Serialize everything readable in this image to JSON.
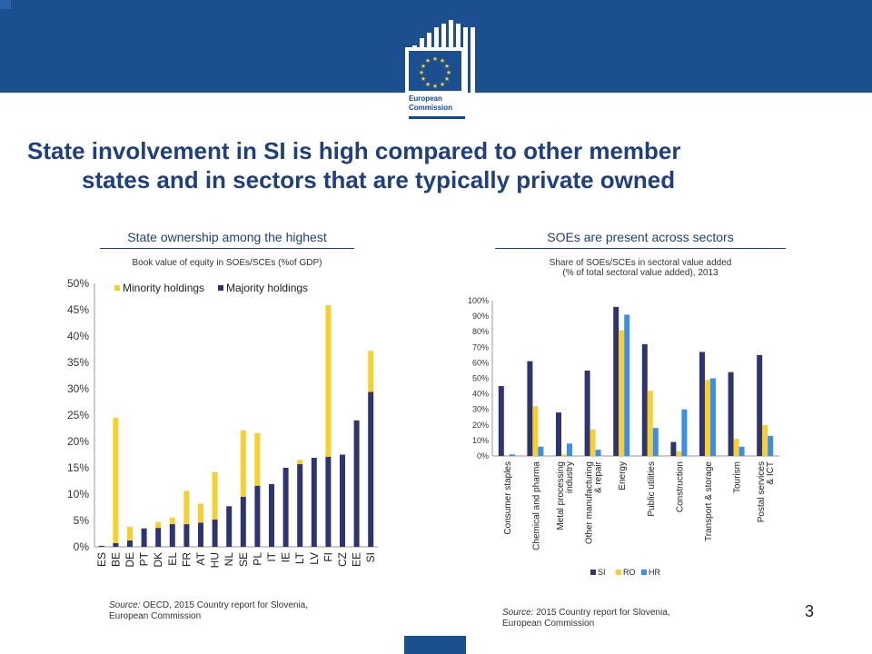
{
  "header": {
    "logo_line1": "European",
    "logo_line2": "Commission"
  },
  "title_line1": "State involvement in SI is high compared to other member",
  "title_line2": "states and in sectors that are typically private owned",
  "left": {
    "subtitle": "State ownership among the highest",
    "chart_title": "Book value of equity in SOEs/SCEs (%of GDP)",
    "source_label": "Source:",
    "source_text": " OECD, 2015 Country report for Slovenia,",
    "source_text2": "European Commission"
  },
  "right": {
    "subtitle": "SOEs are present across sectors",
    "chart_title_line1": "Share of SOEs/SCEs in sectoral value added",
    "chart_title_line2": "(% of total sectoral value added), 2013",
    "source_label": "Source:",
    "source_text": " 2015 Country report for Slovenia,",
    "source_text2": "European Commission"
  },
  "page_number": "3",
  "colors": {
    "brand_blue": "#1b4f8f",
    "title_blue": "#1f3f7e",
    "majority": "#2e3470",
    "minority": "#f7d02f",
    "SI": "#2e3470",
    "RO": "#f7d02f",
    "HR": "#3b8fe8"
  },
  "chart_data": [
    {
      "type": "bar",
      "stacked": true,
      "categories": [
        "ES",
        "BE",
        "DE",
        "PT",
        "DK",
        "EL",
        "FR",
        "AT",
        "HU",
        "NL",
        "SE",
        "PL",
        "IT",
        "IE",
        "LT",
        "LV",
        "FI",
        "CZ",
        "EE",
        "SI"
      ],
      "series": [
        {
          "name": "Majority holdings",
          "values": [
            0.2,
            0.7,
            1.2,
            3.5,
            3.6,
            4.3,
            4.3,
            4.6,
            5.2,
            7.7,
            9.5,
            11.6,
            11.9,
            15.0,
            15.7,
            16.9,
            17.1,
            17.5,
            24.0,
            29.4
          ]
        },
        {
          "name": "Minority holdings",
          "values": [
            0.0,
            23.8,
            2.6,
            0.0,
            1.1,
            1.2,
            6.3,
            3.6,
            9.0,
            0.0,
            12.6,
            10.0,
            0.0,
            0.0,
            0.8,
            0.0,
            28.8,
            0.0,
            0.0,
            7.8
          ]
        }
      ],
      "ylim": [
        0,
        50
      ],
      "yticks": [
        "0%",
        "5%",
        "10%",
        "15%",
        "20%",
        "25%",
        "30%",
        "35%",
        "40%",
        "45%",
        "50%"
      ],
      "legend": "top-left"
    },
    {
      "type": "bar",
      "categories": [
        "Consumer staples",
        "Chemical and pharma",
        "Metal processing industry",
        "Other manufacturing & repair",
        "Energy",
        "Public utilities",
        "Construction",
        "Transport & storage",
        "Tourism",
        "Postal services & ICT"
      ],
      "series": [
        {
          "name": "SI",
          "values": [
            45,
            61,
            28,
            55,
            96,
            72,
            9,
            67,
            54,
            65
          ]
        },
        {
          "name": "RO",
          "values": [
            0,
            32,
            1,
            17,
            81,
            42,
            3,
            49,
            11,
            20
          ]
        },
        {
          "name": "HR",
          "values": [
            1,
            6,
            8,
            4,
            91,
            18,
            30,
            50,
            6,
            13
          ]
        }
      ],
      "ylim": [
        0,
        100
      ],
      "yticks": [
        "0%",
        "10%",
        "20%",
        "30%",
        "40%",
        "50%",
        "60%",
        "70%",
        "80%",
        "90%",
        "100%"
      ],
      "legend": "bottom"
    }
  ]
}
